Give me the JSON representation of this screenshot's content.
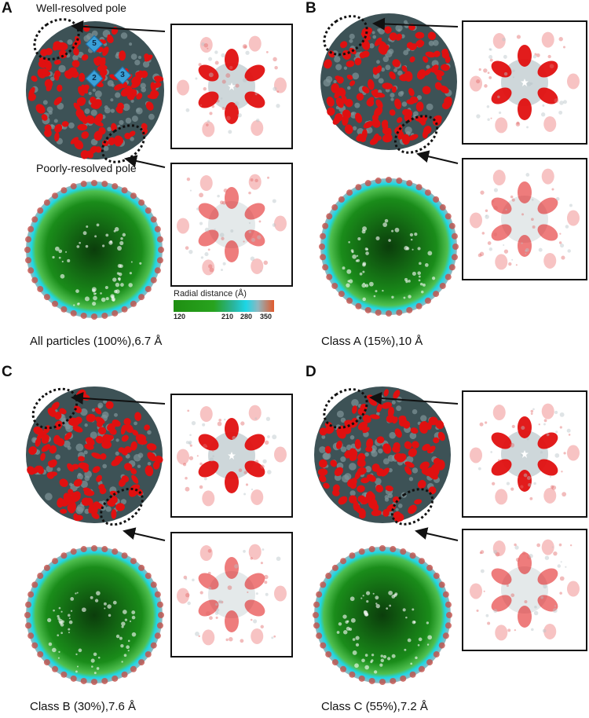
{
  "panels": [
    {
      "letter": "A",
      "caption": "All particles (100%),6.7 Å",
      "labels": {
        "well": "Well-resolved pole",
        "poor": "Poorly-resolved pole"
      },
      "markers": [
        "5",
        "2",
        "3"
      ]
    },
    {
      "letter": "B",
      "caption": "Class A (15%),10 Å"
    },
    {
      "letter": "C",
      "caption": "Class B (30%),7.6 Å"
    },
    {
      "letter": "D",
      "caption": "Class C (55%),7.2 Å"
    }
  ],
  "legend": {
    "title": "Radial distance (Å)",
    "ticks": [
      "120",
      "210",
      "280",
      "350"
    ]
  },
  "colors": {
    "spike": "#e01010",
    "shell": "#3d5256",
    "inner": "#1a8c1a",
    "rim": "#1ed6e6"
  }
}
